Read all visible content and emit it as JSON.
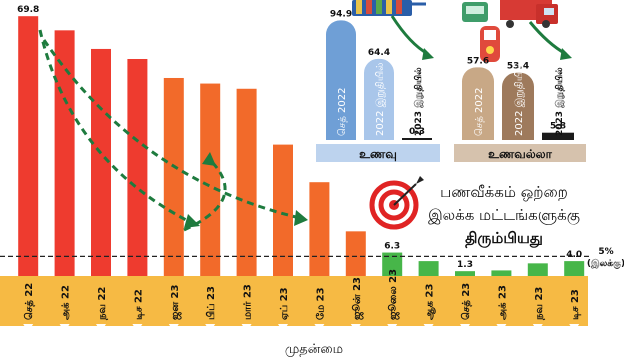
{
  "chart_data": {
    "type": "bar",
    "categories": [
      "செத் 22",
      "அக் 22",
      "நவ 22",
      "டிச 22",
      "ஜன 23",
      "பிப் 23",
      "மார் 23",
      "ஏப் 23",
      "மே 23",
      "ஜூன் 23",
      "ஜூலை 23",
      "ஆக 23",
      "செத் 23",
      "அக் 23",
      "நவ 23",
      "டிச 23"
    ],
    "values": [
      69.8,
      66.0,
      61.0,
      58.3,
      53.2,
      51.7,
      50.3,
      35.3,
      25.2,
      12.0,
      6.3,
      4.0,
      1.3,
      1.5,
      3.4,
      4.0
    ],
    "value_labels": [
      {
        "index": 0,
        "text": "69.8"
      },
      {
        "index": 10,
        "text": "6.3"
      },
      {
        "index": 12,
        "text": "1.3"
      },
      {
        "index": 15,
        "text": "4.0"
      }
    ],
    "ylim": [
      0,
      72
    ],
    "threshold": {
      "value": 5,
      "label": "5%",
      "sublabel": "(இலக்கு)"
    },
    "xlabel": "முதன்மை",
    "headline": [
      "பணவீக்கம் ஒற்றை",
      "இலக்க மட்டங்களுக்கு",
      "திரும்பியது"
    ],
    "colors": {
      "high": "#ee3b2f",
      "mid": "#f26a2a",
      "low": "#47b649",
      "axis_band": "#f4b443",
      "arrow": "#1e7b3e"
    },
    "insets": [
      {
        "title": "உணவு",
        "ylim": [
          0,
          100
        ],
        "bars": [
          {
            "label": "செத் 2022",
            "value": 94.9,
            "color": "#6f9fd6"
          },
          {
            "label": "2022 இறுதியில்",
            "value": 64.4,
            "color": "#a9c6ea"
          },
          {
            "label": "2023 இறுதியில்",
            "value": 0.3,
            "color": "#1b1b1b"
          }
        ]
      },
      {
        "title": "உணவல்லா",
        "ylim": [
          0,
          100
        ],
        "bars": [
          {
            "label": "செத் 2022",
            "value": 57.6,
            "color": "#c8a886"
          },
          {
            "label": "2022 இறுதியில்",
            "value": 53.4,
            "color": "#9e7a5c"
          },
          {
            "label": "2023 இறுதியில்",
            "value": 5.8,
            "color": "#1b1b1b"
          }
        ]
      }
    ]
  }
}
